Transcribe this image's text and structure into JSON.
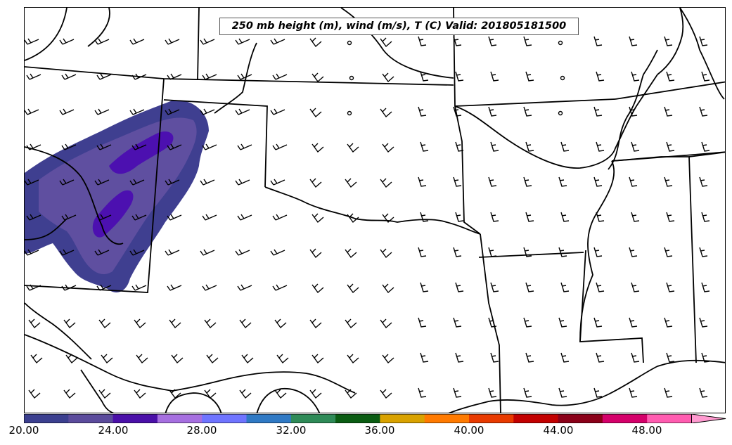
{
  "title": "250 mb height (m), wind (m/s), T (C) Valid: 201805181500",
  "colorbar": {
    "labels": [
      "20.00",
      "24.00",
      "28.00",
      "32.00",
      "36.00",
      "40.00",
      "44.00",
      "48.00"
    ],
    "colors": [
      "#3b3f8f",
      "#5b4b9c",
      "#4a0fa8",
      "#a66fe0",
      "#6f74ff",
      "#2f79c4",
      "#2e8a57",
      "#0a5c12",
      "#d9a200",
      "#ff7a00",
      "#e83a00",
      "#c20000",
      "#8a0018",
      "#d4006a",
      "#ff5cb0",
      "#ff9ad0"
    ]
  },
  "shading_colors": {
    "outer": "#3f3f90",
    "mid": "#5f4fa0",
    "core": "#4c10b0"
  }
}
